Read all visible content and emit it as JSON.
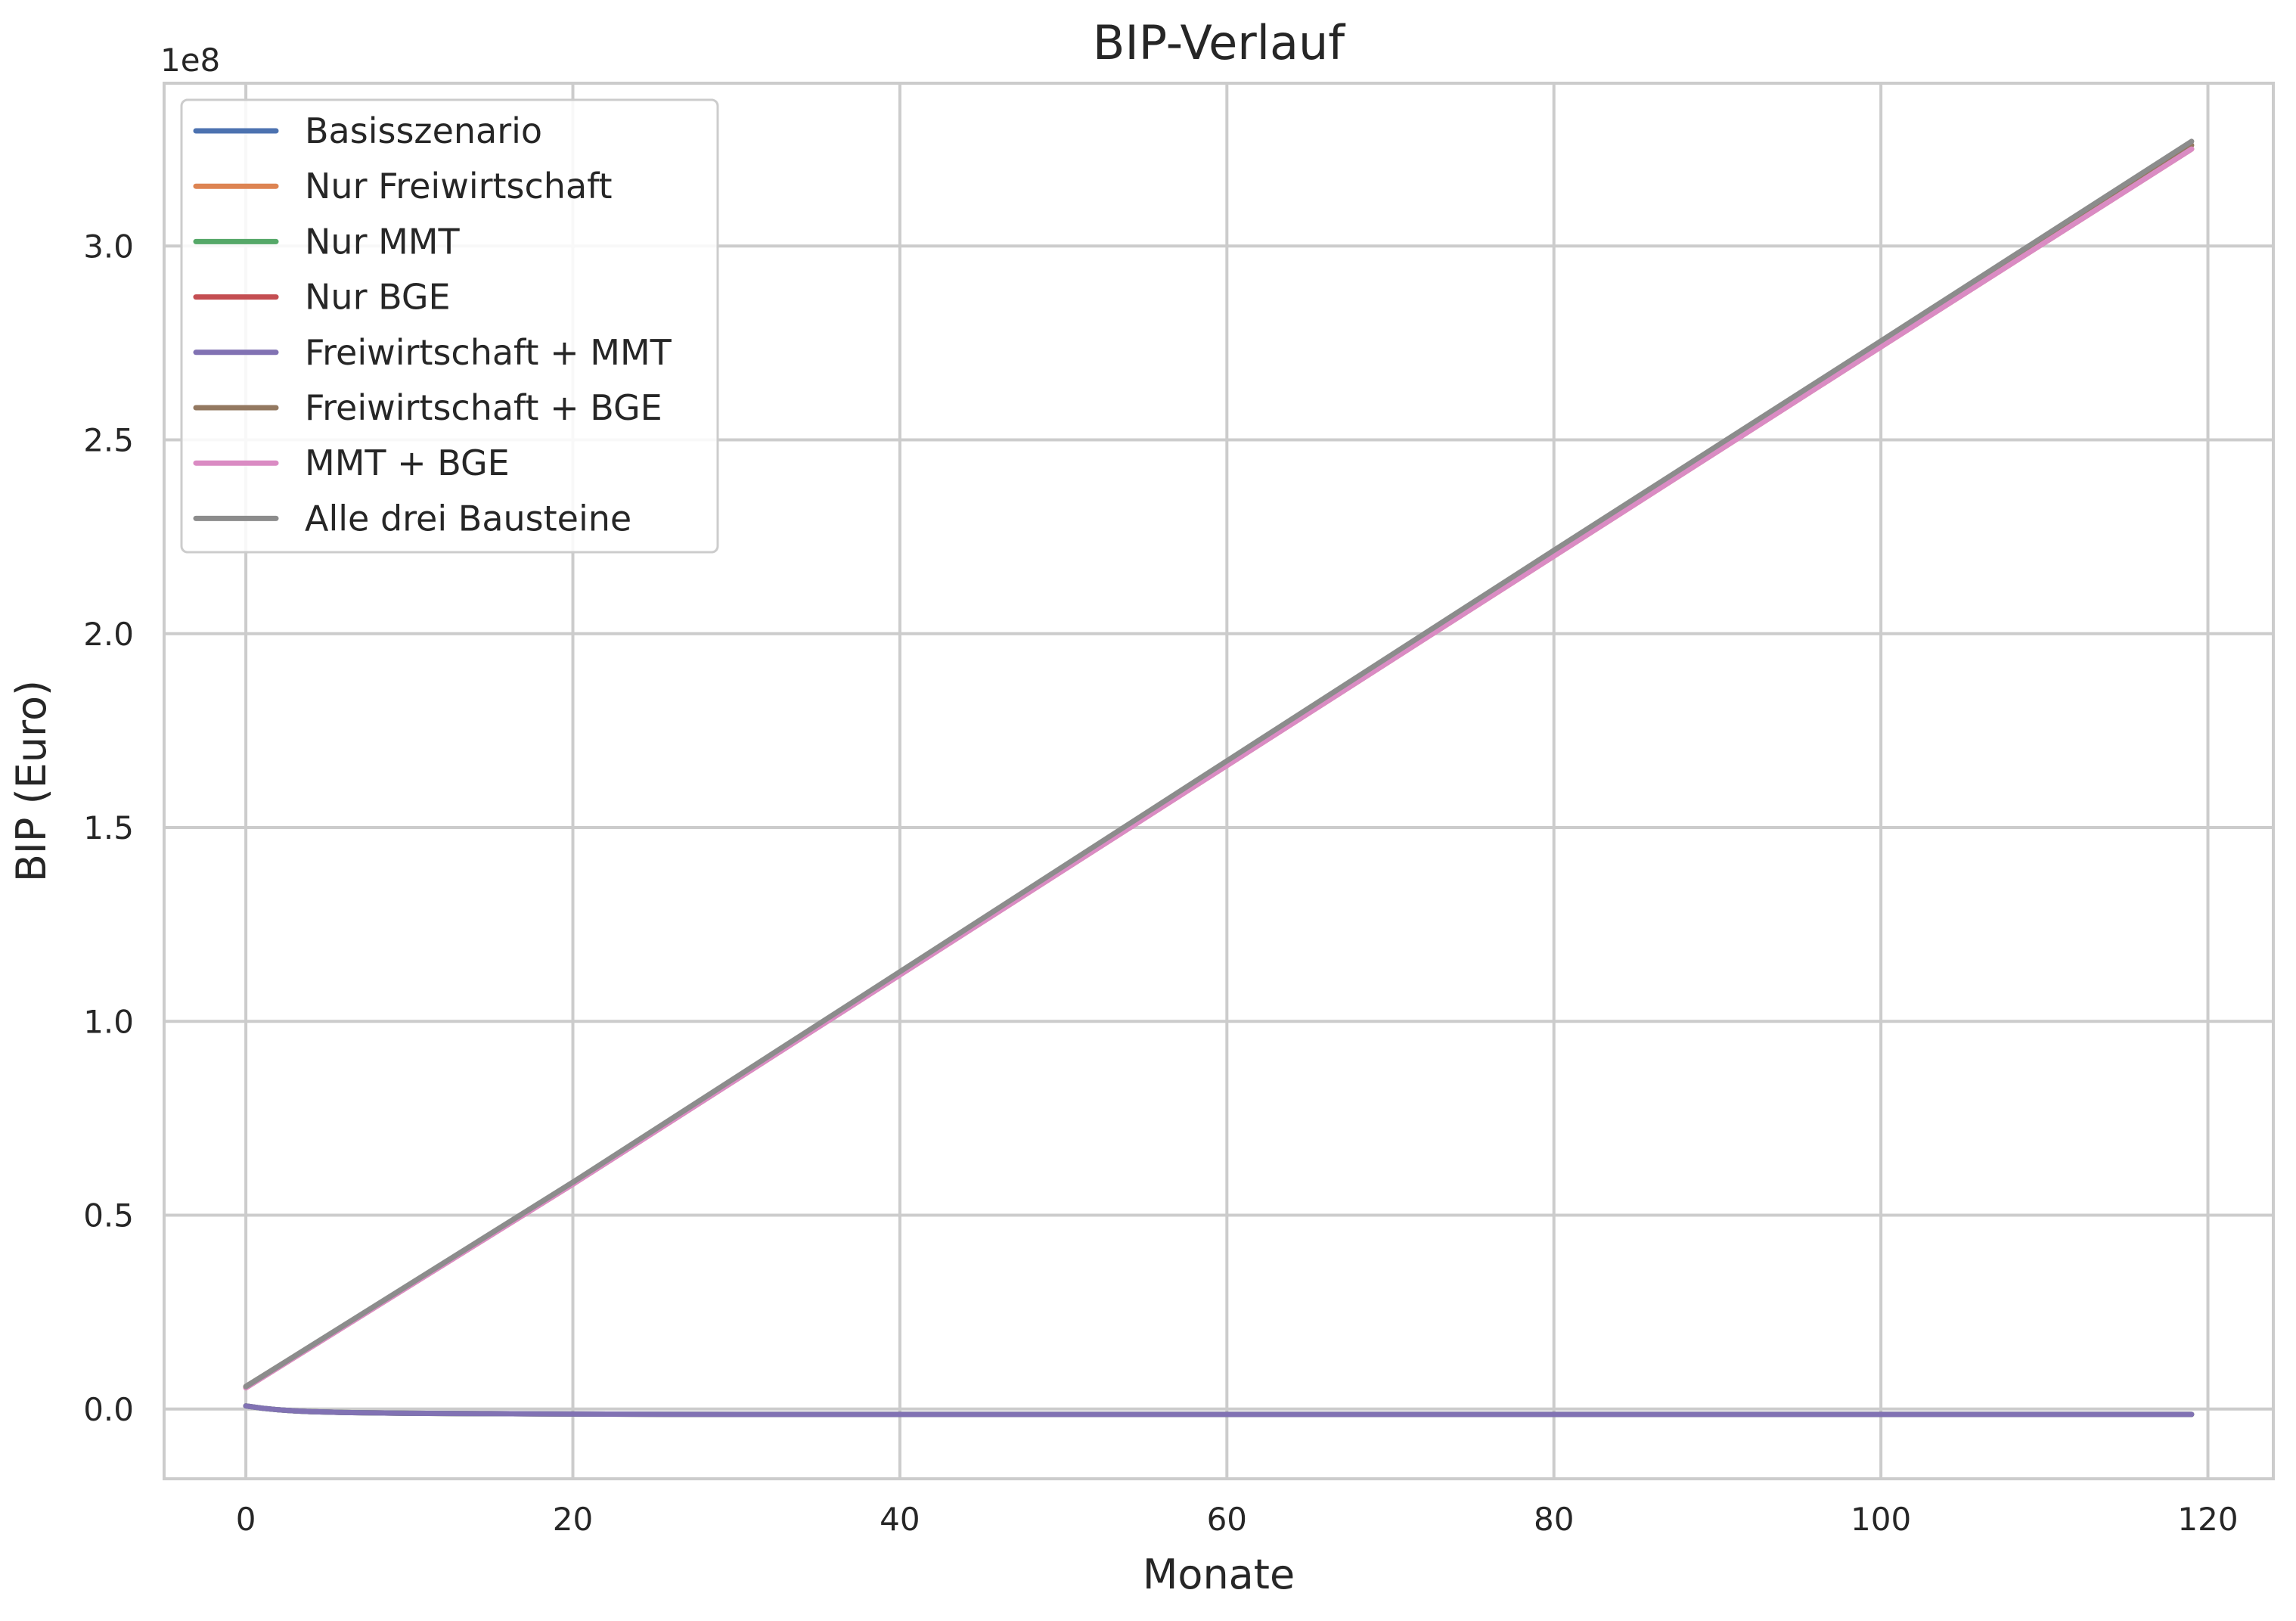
{
  "chart_data": {
    "type": "line",
    "title": "BIP-Verlauf",
    "xlabel": "Monate",
    "ylabel": "BIP (Euro)",
    "y_offset_label": "1e8",
    "xlim": [
      -5,
      124
    ],
    "ylim": [
      -0.18,
      3.42
    ],
    "y_unit_note": "values in units of 1e8 Euro",
    "x_ticks": [
      0,
      20,
      40,
      60,
      80,
      100,
      120
    ],
    "x_tick_labels": [
      "0",
      "20",
      "40",
      "60",
      "80",
      "100",
      "120"
    ],
    "y_ticks": [
      0.0,
      0.5,
      1.0,
      1.5,
      2.0,
      2.5,
      3.0
    ],
    "y_tick_labels": [
      "0.0",
      "0.5",
      "1.0",
      "1.5",
      "2.0",
      "2.5",
      "3.0"
    ],
    "grid": true,
    "legend_position": "top-left",
    "series": [
      {
        "name": "Basisszenario",
        "color": "#4c72b0",
        "x": [
          0,
          1,
          2,
          3,
          4,
          5,
          6,
          8,
          10,
          15,
          20,
          30,
          40,
          60,
          80,
          100,
          119
        ],
        "y": [
          0.008,
          0.002,
          -0.002,
          -0.005,
          -0.007,
          -0.008,
          -0.009,
          -0.01,
          -0.011,
          -0.012,
          -0.013,
          -0.014,
          -0.014,
          -0.014,
          -0.014,
          -0.014,
          -0.014
        ]
      },
      {
        "name": "Nur Freiwirtschaft",
        "color": "#dd8452",
        "x": [
          0,
          1,
          2,
          3,
          4,
          5,
          6,
          8,
          10,
          15,
          20,
          30,
          40,
          60,
          80,
          100,
          119
        ],
        "y": [
          0.008,
          0.002,
          -0.002,
          -0.005,
          -0.007,
          -0.008,
          -0.009,
          -0.01,
          -0.011,
          -0.012,
          -0.013,
          -0.014,
          -0.014,
          -0.014,
          -0.014,
          -0.014,
          -0.014
        ]
      },
      {
        "name": "Nur MMT",
        "color": "#55a868",
        "x": [
          0,
          1,
          2,
          3,
          4,
          5,
          6,
          8,
          10,
          15,
          20,
          30,
          40,
          60,
          80,
          100,
          119
        ],
        "y": [
          0.008,
          0.002,
          -0.002,
          -0.005,
          -0.007,
          -0.008,
          -0.009,
          -0.01,
          -0.011,
          -0.012,
          -0.013,
          -0.014,
          -0.014,
          -0.014,
          -0.014,
          -0.014,
          -0.014
        ]
      },
      {
        "name": "Nur BGE",
        "color": "#c44e52",
        "x": [
          0,
          20,
          40,
          60,
          80,
          100,
          119
        ],
        "y": [
          0.055,
          0.58,
          1.12,
          1.66,
          2.2,
          2.74,
          3.25
        ]
      },
      {
        "name": "Freiwirtschaft + MMT",
        "color": "#8172b3",
        "x": [
          0,
          1,
          2,
          3,
          4,
          5,
          6,
          8,
          10,
          15,
          20,
          30,
          40,
          60,
          80,
          100,
          119
        ],
        "y": [
          0.008,
          0.002,
          -0.002,
          -0.005,
          -0.007,
          -0.008,
          -0.009,
          -0.01,
          -0.011,
          -0.012,
          -0.013,
          -0.014,
          -0.014,
          -0.014,
          -0.014,
          -0.014,
          -0.014
        ]
      },
      {
        "name": "Freiwirtschaft + BGE",
        "color": "#937860",
        "x": [
          0,
          20,
          40,
          60,
          80,
          100,
          119
        ],
        "y": [
          0.058,
          0.583,
          1.125,
          1.67,
          2.21,
          2.75,
          3.26
        ]
      },
      {
        "name": "MMT + BGE",
        "color": "#da8bc3",
        "x": [
          0,
          20,
          40,
          60,
          80,
          100,
          119
        ],
        "y": [
          0.055,
          0.58,
          1.12,
          1.66,
          2.2,
          2.74,
          3.25
        ]
      },
      {
        "name": "Alle drei Bausteine",
        "color": "#8c8c8c",
        "x": [
          0,
          20,
          40,
          60,
          80,
          100,
          119
        ],
        "y": [
          0.058,
          0.585,
          1.128,
          1.672,
          2.215,
          2.755,
          3.27
        ]
      }
    ]
  }
}
